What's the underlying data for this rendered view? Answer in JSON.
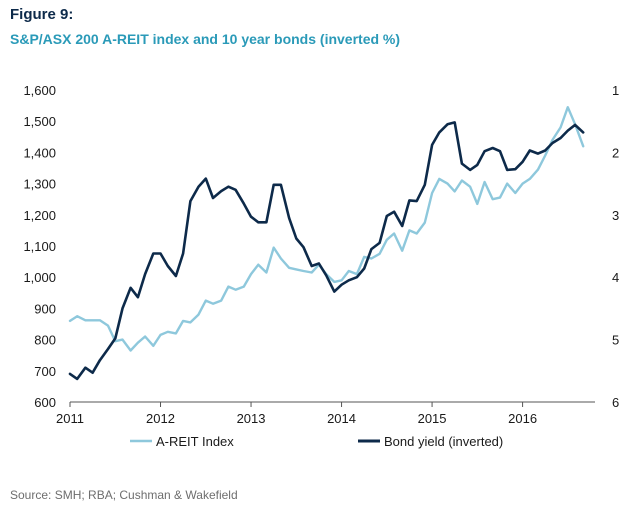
{
  "figure_label": "Figure 9:",
  "title": "S&P/ASX 200 A-REIT index and 10 year bonds (inverted %)",
  "source": "Source: SMH; RBA; Cushman & Wakefield",
  "colors": {
    "areit": "#8ec8dc",
    "bond": "#0d2a4a"
  },
  "chart_data": {
    "type": "line",
    "title": "S&P/ASX 200 A-REIT index and 10 year bonds (inverted %)",
    "x_ticks": [
      "2011",
      "2012",
      "2013",
      "2014",
      "2015",
      "2016"
    ],
    "xlim": [
      2011.0,
      2016.8
    ],
    "y_left": {
      "ylim": [
        600,
        1600
      ],
      "ticks": [
        "600",
        "700",
        "800",
        "900",
        "1,000",
        "1,100",
        "1,200",
        "1,300",
        "1,400",
        "1,500",
        "1,600"
      ]
    },
    "y_right": {
      "ylim": [
        1,
        6
      ],
      "inverted": true,
      "ticks": [
        "1",
        "2",
        "3",
        "4",
        "5",
        "6"
      ]
    },
    "grid": false,
    "legend_position": "bottom",
    "series": [
      {
        "name": "A-REIT Index",
        "axis": "left",
        "color": "#8ec8dc",
        "x": [
          2011.0,
          2011.08,
          2011.17,
          2011.25,
          2011.33,
          2011.42,
          2011.5,
          2011.58,
          2011.67,
          2011.75,
          2011.83,
          2011.92,
          2012.0,
          2012.08,
          2012.17,
          2012.25,
          2012.33,
          2012.42,
          2012.5,
          2012.58,
          2012.67,
          2012.75,
          2012.83,
          2012.92,
          2013.0,
          2013.08,
          2013.17,
          2013.25,
          2013.33,
          2013.42,
          2013.5,
          2013.58,
          2013.67,
          2013.75,
          2013.83,
          2013.92,
          2014.0,
          2014.08,
          2014.17,
          2014.25,
          2014.33,
          2014.42,
          2014.5,
          2014.58,
          2014.67,
          2014.75,
          2014.83,
          2014.92,
          2015.0,
          2015.08,
          2015.17,
          2015.25,
          2015.33,
          2015.42,
          2015.5,
          2015.58,
          2015.67,
          2015.75,
          2015.83,
          2015.92,
          2016.0,
          2016.08,
          2016.17,
          2016.25,
          2016.33,
          2016.42,
          2016.5,
          2016.58,
          2016.67
        ],
        "values": [
          860,
          875,
          862,
          862,
          862,
          845,
          795,
          800,
          765,
          790,
          810,
          780,
          815,
          825,
          820,
          860,
          855,
          880,
          925,
          915,
          925,
          970,
          960,
          970,
          1010,
          1040,
          1015,
          1095,
          1060,
          1030,
          1025,
          1020,
          1015,
          1040,
          1010,
          985,
          990,
          1020,
          1010,
          1065,
          1060,
          1075,
          1120,
          1140,
          1085,
          1150,
          1140,
          1175,
          1270,
          1315,
          1300,
          1275,
          1310,
          1290,
          1235,
          1305,
          1250,
          1255,
          1300,
          1270,
          1300,
          1315,
          1345,
          1390,
          1440,
          1480,
          1545,
          1490,
          1420
        ]
      },
      {
        "name": "Bond yield (inverted)",
        "axis": "right",
        "color": "#0d2a4a",
        "x": [
          2011.0,
          2011.08,
          2011.17,
          2011.25,
          2011.33,
          2011.42,
          2011.5,
          2011.58,
          2011.67,
          2011.75,
          2011.83,
          2011.92,
          2012.0,
          2012.08,
          2012.17,
          2012.25,
          2012.33,
          2012.42,
          2012.5,
          2012.58,
          2012.67,
          2012.75,
          2012.83,
          2012.92,
          2013.0,
          2013.08,
          2013.17,
          2013.25,
          2013.33,
          2013.42,
          2013.5,
          2013.58,
          2013.67,
          2013.75,
          2013.83,
          2013.92,
          2014.0,
          2014.08,
          2014.17,
          2014.25,
          2014.33,
          2014.42,
          2014.5,
          2014.58,
          2014.67,
          2014.75,
          2014.83,
          2014.92,
          2015.0,
          2015.08,
          2015.17,
          2015.25,
          2015.33,
          2015.42,
          2015.5,
          2015.58,
          2015.67,
          2015.75,
          2015.83,
          2015.92,
          2016.0,
          2016.08,
          2016.17,
          2016.25,
          2016.33,
          2016.42,
          2016.5,
          2016.58,
          2016.67
        ],
        "values": [
          5.55,
          5.63,
          5.45,
          5.53,
          5.33,
          5.15,
          4.98,
          4.5,
          4.17,
          4.32,
          3.95,
          3.62,
          3.62,
          3.82,
          3.98,
          3.62,
          2.78,
          2.55,
          2.42,
          2.73,
          2.62,
          2.55,
          2.6,
          2.82,
          3.03,
          3.12,
          3.12,
          2.52,
          2.52,
          3.05,
          3.38,
          3.52,
          3.82,
          3.78,
          3.97,
          4.23,
          4.12,
          4.05,
          4.0,
          3.86,
          3.55,
          3.45,
          3.02,
          2.95,
          3.18,
          2.77,
          2.78,
          2.52,
          1.88,
          1.68,
          1.55,
          1.52,
          2.18,
          2.28,
          2.2,
          1.98,
          1.93,
          1.98,
          2.28,
          2.27,
          2.15,
          1.97,
          2.02,
          1.97,
          1.85,
          1.77,
          1.65,
          1.56,
          1.68
        ]
      }
    ]
  }
}
